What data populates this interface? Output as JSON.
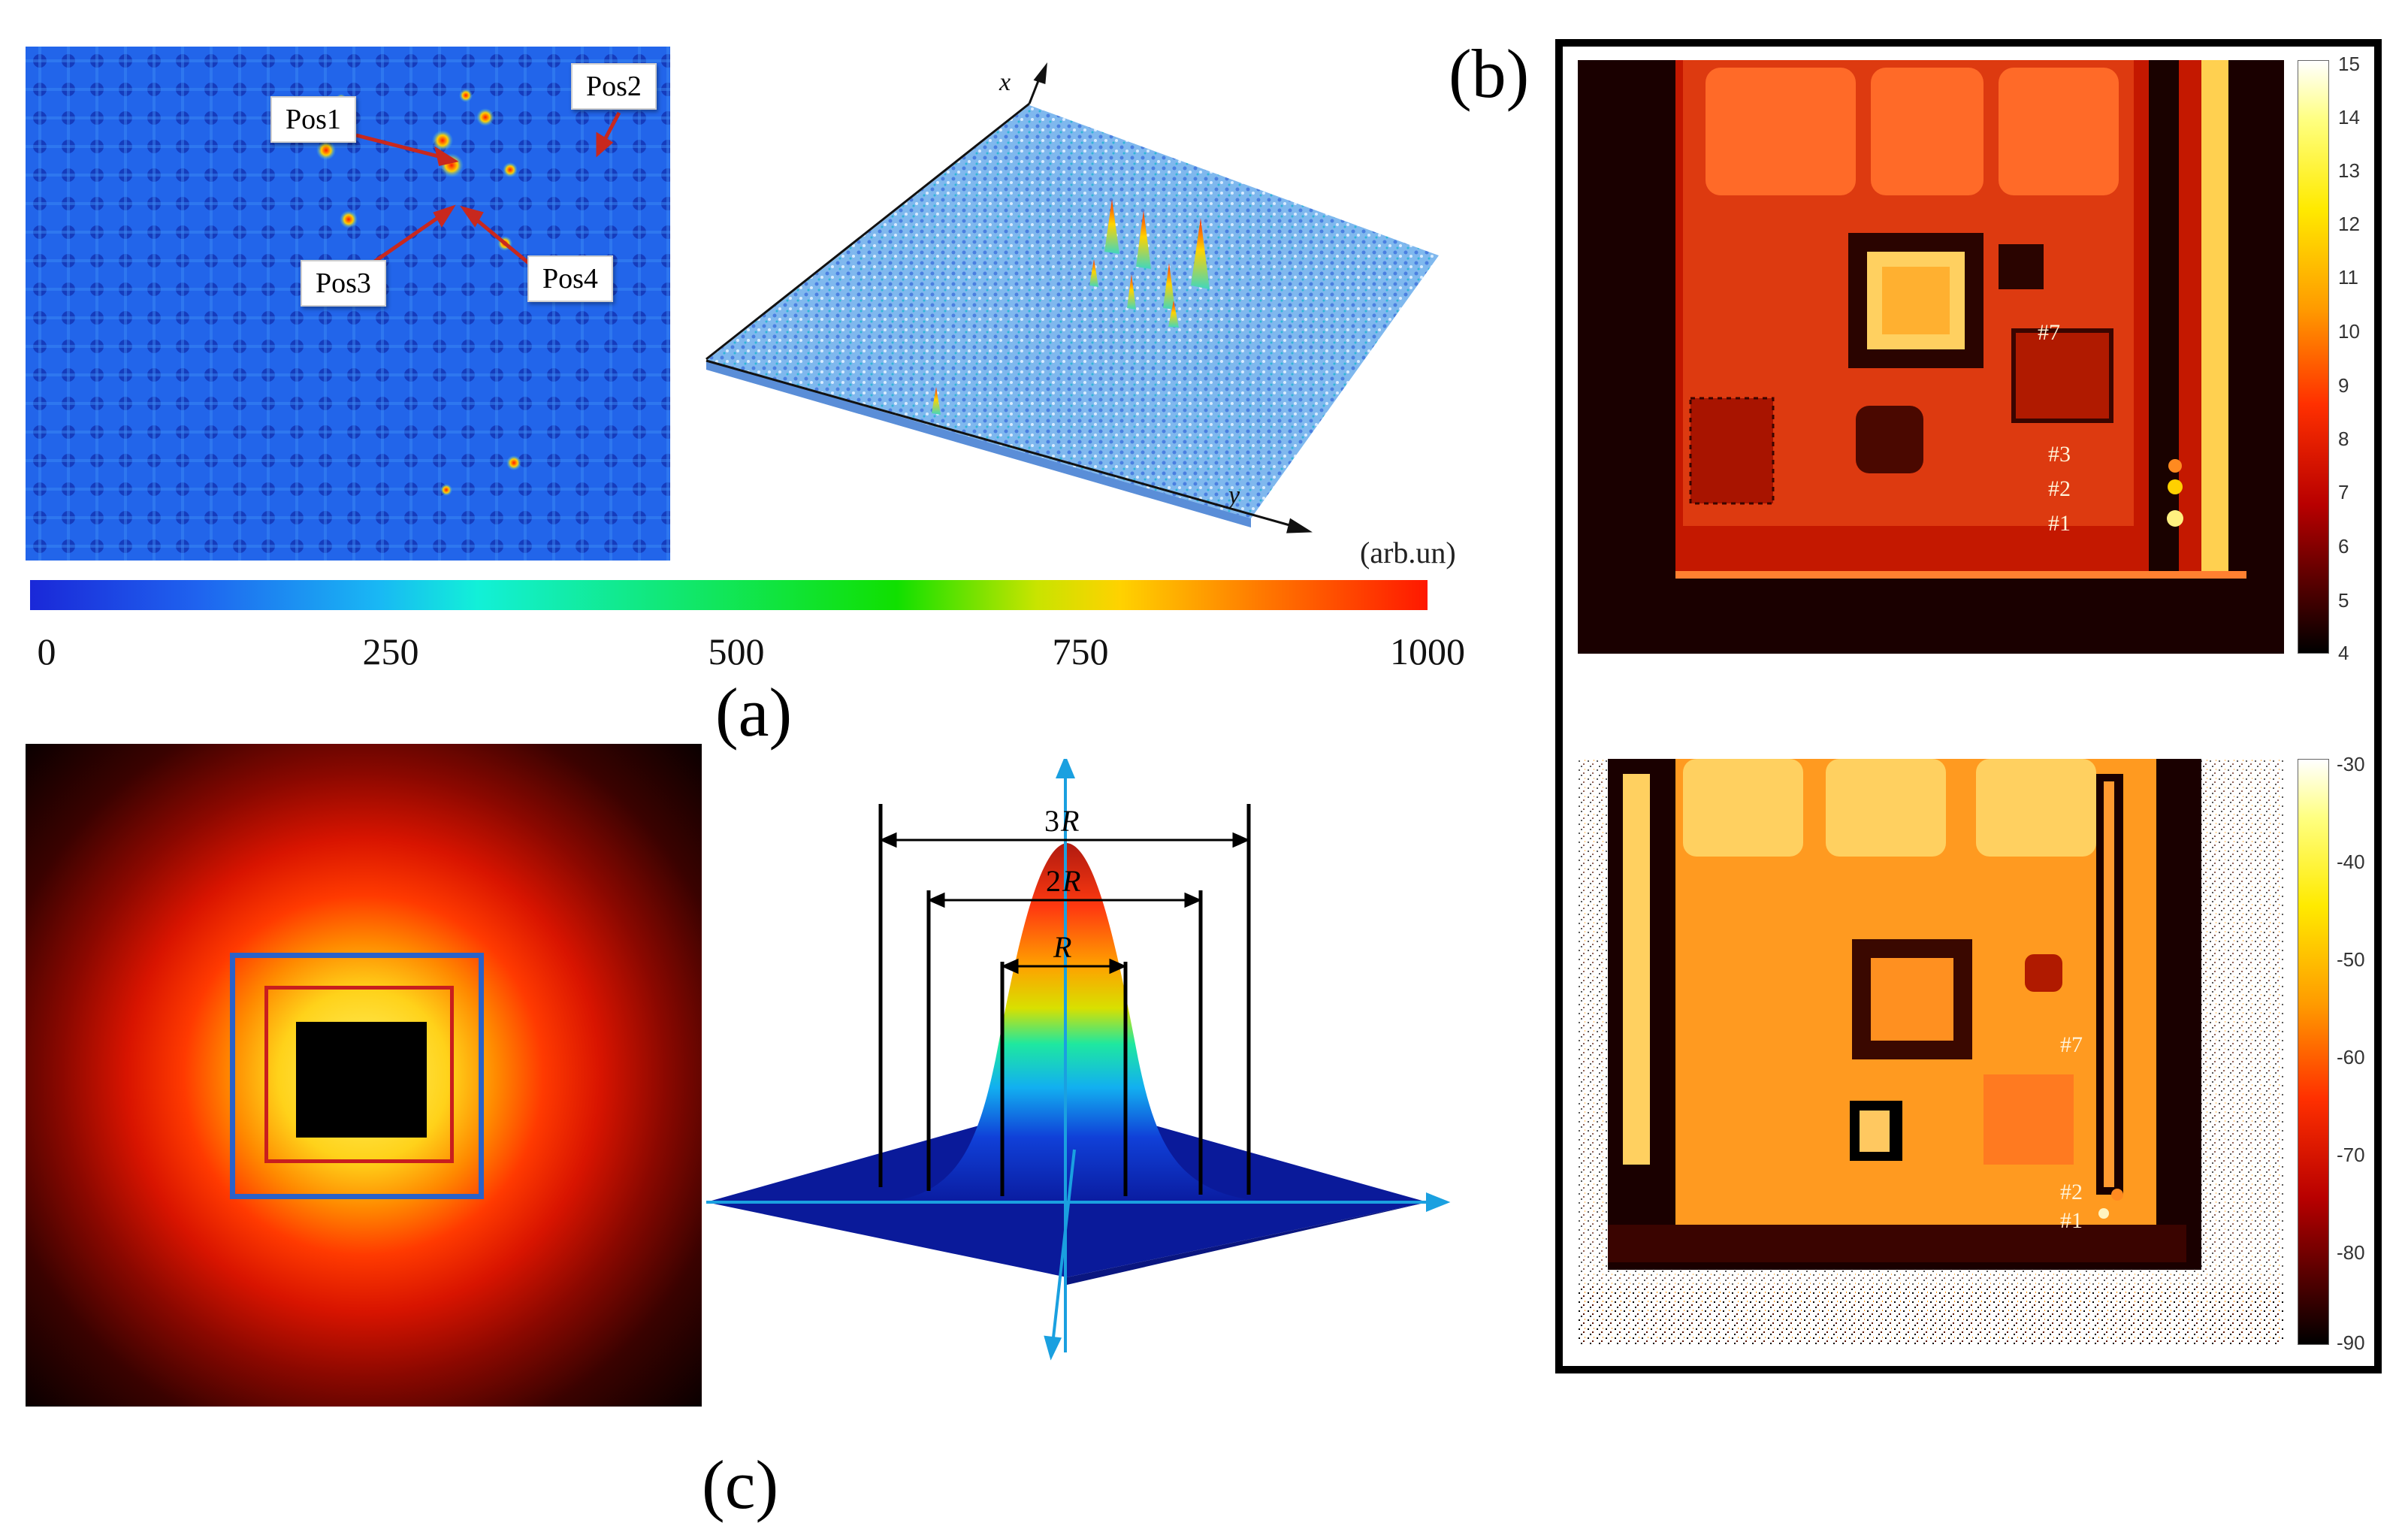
{
  "panels": {
    "a": {
      "label": "(a)",
      "callouts": [
        "Pos1",
        "Pos2",
        "Pos3",
        "Pos4"
      ],
      "axis3d": {
        "x": "x",
        "y": "y"
      },
      "colorbar": {
        "unit": "(arb.un)",
        "ticks": [
          "0",
          "250",
          "500",
          "750",
          "1000"
        ],
        "colormap": "jet"
      }
    },
    "b": {
      "label": "(b)",
      "top": {
        "colorbar_ticks": [
          "15",
          "14",
          "13",
          "12",
          "11",
          "10",
          "9",
          "8",
          "7",
          "6",
          "5",
          "4"
        ],
        "hotspots": [
          "#7",
          "#3",
          "#2",
          "#1"
        ],
        "colormap": "hot"
      },
      "bottom": {
        "colorbar_ticks": [
          "-30",
          "-40",
          "-50",
          "-60",
          "-70",
          "-80",
          "-90"
        ],
        "hotspots": [
          "#7",
          "#2",
          "#1"
        ],
        "colormap": "hot"
      }
    },
    "c": {
      "label": "(c)",
      "square_colors": {
        "outer": "#2a62c9",
        "inner": "#c81e1e"
      },
      "dimensions": {
        "outer": "3",
        "middle": "2",
        "inner": "",
        "symbol": "R"
      }
    }
  },
  "colors": {
    "jet_low": "#0000c8",
    "jet_high": "#ff0000",
    "hot_dark": "#000000",
    "hot_bright": "#ffffff"
  }
}
